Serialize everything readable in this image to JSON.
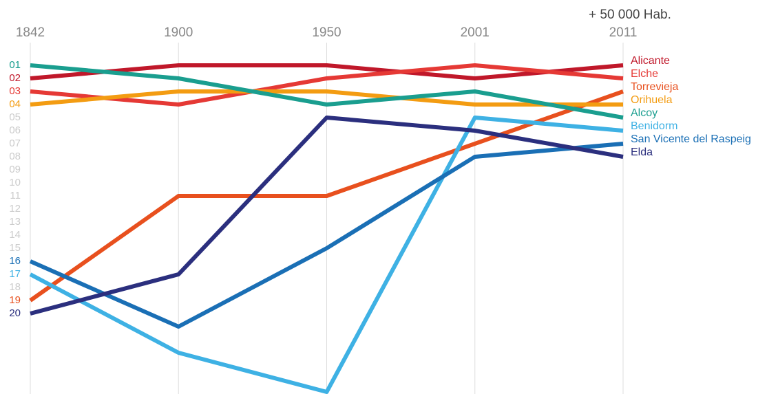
{
  "chart_data": {
    "type": "bump",
    "annotation": "+ 50 000 Hab.",
    "categories": [
      "1842",
      "1900",
      "1950",
      "2001",
      "2011"
    ],
    "ylim": [
      1,
      26
    ],
    "y_inverted": true,
    "grid": true,
    "yticks": [
      {
        "value": 1,
        "label": "01"
      },
      {
        "value": 2,
        "label": "02"
      },
      {
        "value": 3,
        "label": "03"
      },
      {
        "value": 4,
        "label": "04"
      },
      {
        "value": 5,
        "label": "05"
      },
      {
        "value": 6,
        "label": "06"
      },
      {
        "value": 7,
        "label": "07"
      },
      {
        "value": 8,
        "label": "08"
      },
      {
        "value": 9,
        "label": "09"
      },
      10,
      11,
      12,
      13,
      14,
      15,
      16,
      17,
      18,
      19,
      20
    ],
    "series": [
      {
        "name": "Alicante",
        "color": "#c0182a",
        "values": [
          2,
          1,
          1,
          2,
          1
        ]
      },
      {
        "name": "Elche",
        "color": "#e53935",
        "values": [
          3,
          4,
          2,
          1,
          2
        ]
      },
      {
        "name": "Torrevieja",
        "color": "#e8501e",
        "values": [
          19,
          11,
          11,
          7,
          3
        ]
      },
      {
        "name": "Orihuela",
        "color": "#f39c12",
        "values": [
          4,
          3,
          3,
          4,
          4
        ]
      },
      {
        "name": "Alcoy",
        "color": "#1a9e8f",
        "values": [
          1,
          2,
          4,
          3,
          5
        ]
      },
      {
        "name": "Benidorm",
        "color": "#3eb1e4",
        "values": [
          17,
          23,
          26,
          5,
          6
        ]
      },
      {
        "name": "San Vicente del Raspeig",
        "color": "#1a6fb5",
        "values": [
          16,
          21,
          15,
          8,
          7
        ]
      },
      {
        "name": "Elda",
        "color": "#2b2f7e",
        "values": [
          20,
          17,
          5,
          6,
          8
        ]
      }
    ]
  }
}
